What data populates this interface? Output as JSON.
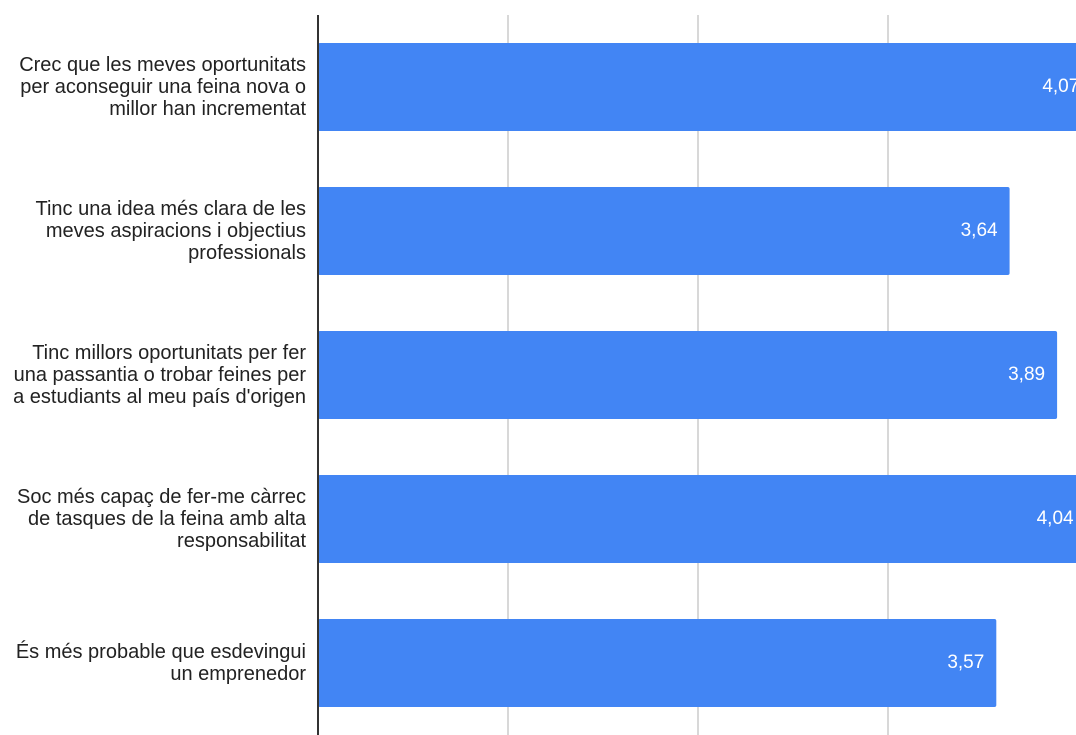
{
  "chart_data": {
    "type": "hbar",
    "categories": [
      "Crec que les meves oportunitats per aconseguir una feina nova o millor han incrementat",
      "Tinc una idea més clara de les meves aspiracions i objectius professionals",
      "Tinc millors oportunitats per fer una passantia o trobar feines per a estudiants al meu país d'origen",
      "Soc més capaç de fer-me càrrec de tasques de la feina amb alta responsabilitat",
      "És més probable que esdevingui un emprenedor"
    ],
    "values": [
      4.07,
      3.64,
      3.89,
      4.04,
      3.57
    ],
    "value_labels": [
      "4,07",
      "3,64",
      "3,89",
      "4,04",
      "3,57"
    ],
    "color": "#4285f4",
    "xlim": [
      0,
      4
    ],
    "xticks": [
      0,
      1,
      2,
      3
    ],
    "grid": true
  }
}
